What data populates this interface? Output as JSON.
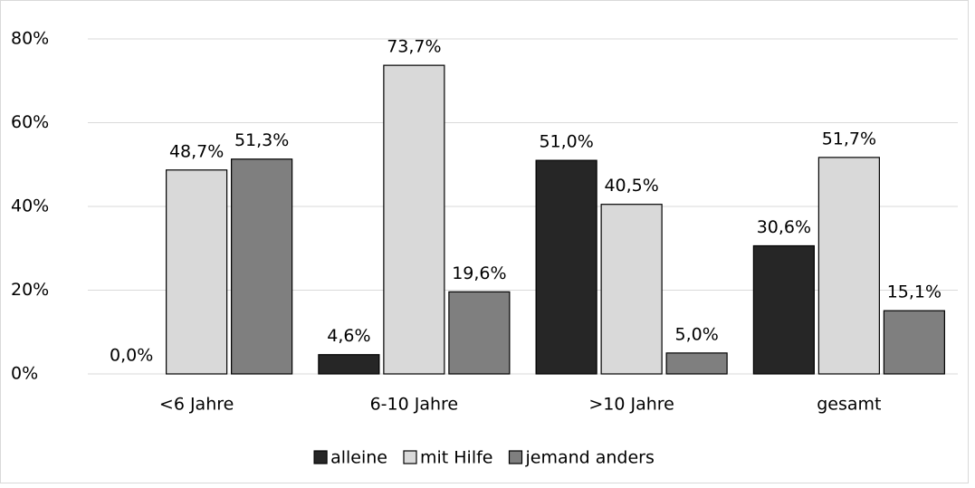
{
  "chart_data": {
    "type": "bar",
    "categories": [
      "<6 Jahre",
      "6-10 Jahre",
      ">10 Jahre",
      "gesamt"
    ],
    "series": [
      {
        "name": "alleine",
        "color": "#262626",
        "values": [
          0.0,
          4.6,
          51.0,
          30.6
        ],
        "value_labels": [
          "0,0%",
          "4,6%",
          "51,0%",
          "30,6%"
        ]
      },
      {
        "name": "mit Hilfe",
        "color": "#d9d9d9",
        "values": [
          48.7,
          73.7,
          40.5,
          51.7
        ],
        "value_labels": [
          "48,7%",
          "73,7%",
          "40,5%",
          "51,7%"
        ]
      },
      {
        "name": "jemand anders",
        "color": "#7f7f7f",
        "values": [
          51.3,
          19.6,
          5.0,
          15.1
        ],
        "value_labels": [
          "51,3%",
          "19,6%",
          "5,0%",
          "15,1%"
        ]
      }
    ],
    "ylim": [
      0,
      80
    ],
    "yticks": [
      {
        "value": 0,
        "label": "0%"
      },
      {
        "value": 20,
        "label": "20%"
      },
      {
        "value": 40,
        "label": "40%"
      },
      {
        "value": 60,
        "label": "60%"
      },
      {
        "value": 80,
        "label": "80%"
      }
    ],
    "grid": true,
    "legend": "bottom"
  }
}
